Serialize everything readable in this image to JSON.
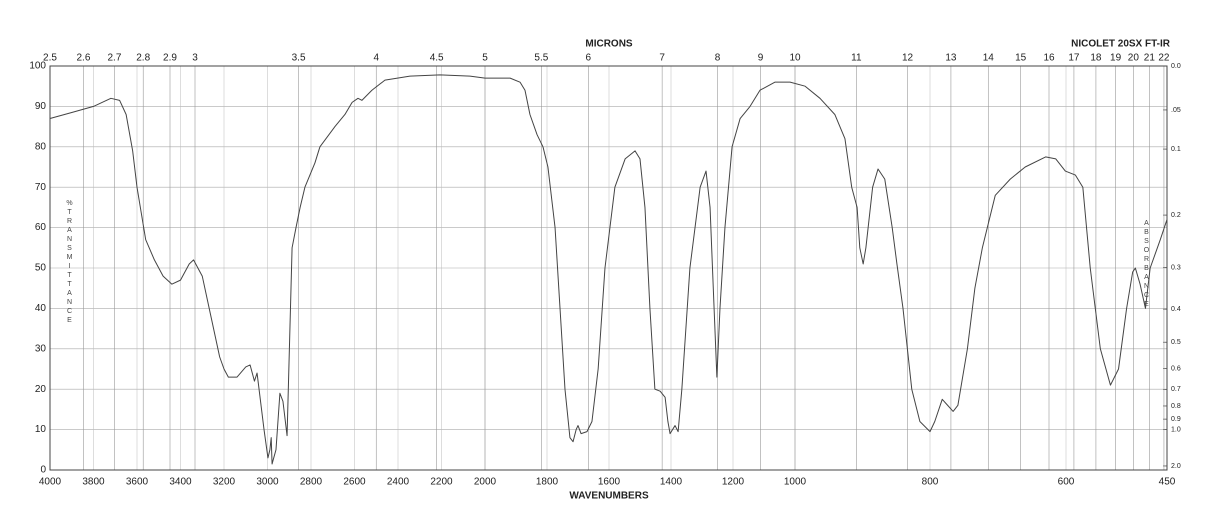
{
  "chart_data": {
    "type": "line",
    "title": "NICOLET 20SX FT-IR",
    "xlabel": "WAVENUMBERS",
    "x2label": "MICRONS",
    "ylabel": "%TRANSMITTANCE",
    "y2label": "ABSORBANCE",
    "color": "#444444",
    "grid": true,
    "x": [
      4000,
      3900,
      3800,
      3720,
      3680,
      3650,
      3620,
      3600,
      3560,
      3520,
      3480,
      3440,
      3400,
      3360,
      3340,
      3300,
      3260,
      3220,
      3200,
      3180,
      3140,
      3100,
      3080,
      3060,
      3048,
      3016,
      2998,
      2989,
      2983,
      2979,
      2961,
      2943,
      2929,
      2910,
      2887,
      2869,
      2850,
      2828,
      2782,
      2759,
      2690,
      2644,
      2611,
      2584,
      2566,
      2520,
      2460,
      2345,
      2207,
      2069,
      2000,
      1919,
      1887,
      1871,
      1855,
      1832,
      1813,
      1797,
      1774,
      1758,
      1742,
      1726,
      1716,
      1706,
      1700,
      1690,
      1671,
      1655,
      1635,
      1613,
      1581,
      1548,
      1516,
      1500,
      1484,
      1468,
      1452,
      1435,
      1419,
      1410,
      1403,
      1387,
      1377,
      1365,
      1339,
      1306,
      1287,
      1274,
      1261,
      1252,
      1242,
      1226,
      1203,
      1177,
      1145,
      1113,
      1065,
      1016,
      985,
      963,
      941,
      926,
      916,
      908,
      904,
      899,
      895,
      885,
      877,
      867,
      856,
      849,
      840,
      827,
      815,
      800,
      793,
      782,
      774,
      766,
      759,
      745,
      734,
      723,
      704,
      682,
      660,
      630,
      615,
      601,
      586,
      575,
      564,
      549,
      534,
      522,
      510,
      501,
      497,
      490,
      482,
      475,
      460,
      450
    ],
    "values": [
      87,
      88.5,
      90,
      92,
      91.5,
      88,
      79,
      70,
      57,
      52,
      48,
      46,
      47,
      51,
      52,
      48,
      38,
      28,
      25,
      23,
      23,
      25.5,
      26,
      22,
      24,
      10,
      3,
      5,
      8,
      1.5,
      5,
      19,
      17,
      8.5,
      55,
      60,
      65,
      70,
      76,
      80,
      85,
      88,
      91,
      92,
      91.5,
      94,
      96.5,
      97.5,
      97.8,
      97.5,
      97,
      97,
      96,
      94,
      88,
      83,
      80,
      75,
      60,
      40,
      20,
      8,
      7,
      10,
      11,
      9,
      9.5,
      12,
      25,
      50,
      70,
      77,
      79,
      77,
      65,
      40,
      20,
      19.5,
      18,
      12,
      9,
      11,
      9.5,
      20,
      50,
      70,
      74,
      65,
      40,
      23,
      40,
      60,
      80,
      87,
      90,
      94,
      96,
      96,
      95,
      92,
      88,
      82,
      70,
      65,
      55,
      51,
      55,
      70,
      74.5,
      72,
      60,
      51,
      40,
      20,
      12,
      9.5,
      12,
      17.5,
      16,
      14.5,
      16,
      30,
      45,
      55,
      68,
      72,
      75,
      77.5,
      77,
      74,
      73,
      70,
      50,
      30,
      21,
      25,
      40,
      49,
      50,
      46,
      40,
      50,
      57,
      62
    ],
    "xlim": [
      4000,
      450
    ],
    "xticks": [
      4000,
      3800,
      3600,
      3400,
      3200,
      3000,
      2800,
      2600,
      2400,
      2200,
      2000,
      1800,
      1600,
      1400,
      1200,
      1000,
      800,
      600,
      450
    ],
    "x2ticks": [
      2.5,
      2.6,
      2.7,
      2.8,
      2.9,
      3,
      3.5,
      4,
      4.5,
      5,
      5.5,
      6,
      7,
      8,
      9,
      10,
      11,
      12,
      13,
      14,
      15,
      16,
      17,
      18,
      19,
      20,
      21,
      22
    ],
    "ylim": [
      0,
      100
    ],
    "yticks": [
      0,
      10,
      20,
      30,
      40,
      50,
      60,
      70,
      80,
      90,
      100
    ],
    "y2ticks": [
      {
        "value": 0,
        "label": "0.0"
      },
      {
        "value": 0.05,
        "label": ".05"
      },
      0.1,
      0.2,
      0.3,
      0.4,
      0.5,
      0.6,
      0.7,
      0.8,
      0.9,
      {
        "value": 1,
        "label": "1.0"
      },
      {
        "value": 2,
        "label": "2.0"
      }
    ]
  }
}
